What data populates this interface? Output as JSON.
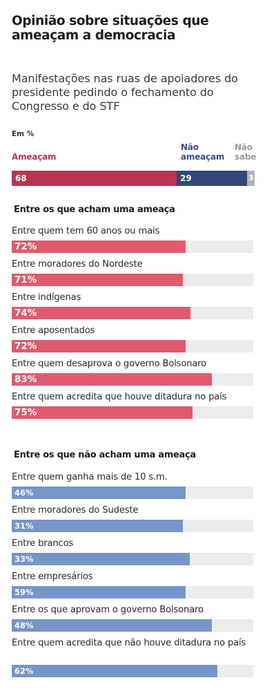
{
  "title": "Opinião sobre situações que ameaçam a democracia",
  "subtitle": "Manifestações nas ruas de apoiadores do presidente pedindo o fechamento do Congresso e do STF",
  "unit_label": "Em %",
  "colors": {
    "ameacam": "#b8364f",
    "nao_ameacam": "#33477b",
    "nao_sabe": "#b3b3b3",
    "group_red": "#e05a6e",
    "group_blue": "#7695c9",
    "track": "#ececec"
  },
  "chart_data": [
    {
      "type": "bar",
      "orientation": "horizontal-stacked",
      "unit": "%",
      "categories": [
        "Total"
      ],
      "series": [
        {
          "name": "Ameaçam",
          "values": [
            68
          ]
        },
        {
          "name": "Não ameaçam",
          "values": [
            29
          ]
        },
        {
          "name": "Não sabe",
          "values": [
            3
          ]
        }
      ],
      "legend_labels": {
        "ameacam": "Ameaçam",
        "nao_ameacam_line1": "Não",
        "nao_ameacam_line2": "ameaçam",
        "nao_sabe_line1": "Não",
        "nao_sabe_line2": "sabe"
      },
      "xlim": [
        0,
        100
      ]
    },
    {
      "type": "bar",
      "orientation": "horizontal",
      "title": "Entre os que acham uma ameaça",
      "categories": [
        "Entre quem tem 60 anos ou mais",
        "Entre moradores do Nordeste",
        "Entre indígenas",
        "Entre aposentados",
        "Entre quem desaprova o governo Bolsonaro",
        "Entre quem acredita que houve ditadura no país"
      ],
      "values": [
        72,
        71,
        74,
        72,
        83,
        75
      ],
      "labels": [
        "72%",
        "71%",
        "74%",
        "72%",
        "83%",
        "75%"
      ],
      "xlim": [
        0,
        100
      ]
    },
    {
      "type": "bar",
      "orientation": "horizontal",
      "title": "Entre os que não acham uma ameaça",
      "categories": [
        "Entre quem ganha mais de 10 s.m.",
        "Entre moradores do Sudeste",
        "Entre brancos",
        "Entre empresários",
        "Entre os que aprovam o governo Bolsonaro",
        "Entre quem acredita que não houve ditadura no país"
      ],
      "values": [
        46,
        31,
        33,
        59,
        48,
        62
      ],
      "labels": [
        "46%",
        "31%",
        "33%",
        "59%",
        "48%",
        "62%"
      ],
      "xlim": [
        0,
        100
      ]
    }
  ]
}
